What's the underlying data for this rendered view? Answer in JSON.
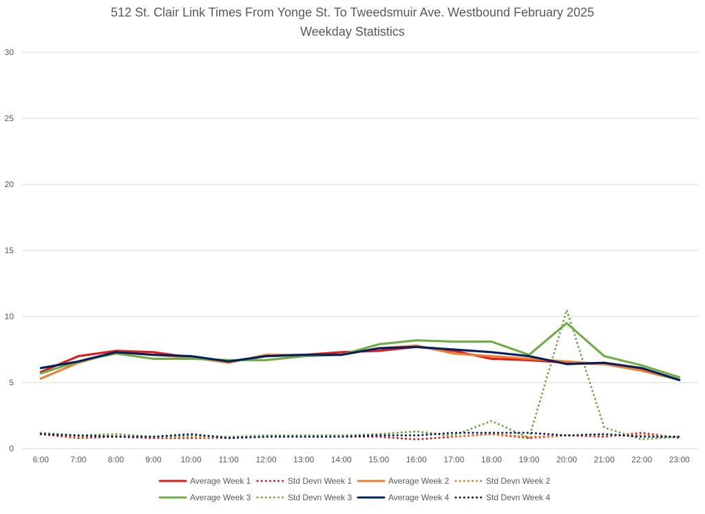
{
  "chart_data": {
    "type": "line",
    "title": "512 St. Clair Link Times From Yonge St. To Tweedsmuir Ave. Westbound February 2025",
    "subtitle": "Weekday Statistics",
    "xlabel": "",
    "ylabel": "",
    "categories": [
      "6:00",
      "7:00",
      "8:00",
      "9:00",
      "10:00",
      "11:00",
      "12:00",
      "13:00",
      "14:00",
      "15:00",
      "16:00",
      "17:00",
      "18:00",
      "19:00",
      "20:00",
      "21:00",
      "22:00",
      "23:00"
    ],
    "ylim": [
      0,
      30
    ],
    "yticks": [
      "0",
      "5",
      "10",
      "15",
      "20",
      "25",
      "30"
    ],
    "grid": true,
    "legend_position": "bottom",
    "series": [
      {
        "name": "Average Week 1",
        "style": "solid",
        "color": "#e01b1b",
        "values": [
          5.8,
          7.0,
          7.4,
          7.3,
          6.9,
          6.6,
          7.0,
          7.1,
          7.3,
          7.4,
          7.7,
          7.4,
          6.8,
          6.7,
          6.5,
          6.4,
          6.0,
          5.2
        ]
      },
      {
        "name": "Std Devn Week 1",
        "style": "dotted",
        "color": "#e01b1b",
        "values": [
          1.1,
          0.8,
          0.9,
          0.8,
          0.8,
          0.8,
          0.9,
          0.9,
          0.9,
          0.9,
          0.7,
          0.9,
          1.1,
          0.8,
          1.0,
          0.9,
          1.2,
          0.8
        ]
      },
      {
        "name": "Average Week 2",
        "style": "solid",
        "color": "#ed7d31",
        "values": [
          5.3,
          6.5,
          7.3,
          7.1,
          6.9,
          6.5,
          7.1,
          7.1,
          7.1,
          7.6,
          7.8,
          7.2,
          7.0,
          6.8,
          6.6,
          6.4,
          5.9,
          5.2
        ]
      },
      {
        "name": "Std Devn Week 2",
        "style": "dotted",
        "color": "#ed7d31",
        "values": [
          1.2,
          0.9,
          1.0,
          0.9,
          0.9,
          0.8,
          1.0,
          1.0,
          1.0,
          1.1,
          1.3,
          0.9,
          1.1,
          0.9,
          1.0,
          1.0,
          1.0,
          0.9
        ]
      },
      {
        "name": "Average Week 3",
        "style": "solid",
        "color": "#70ad47",
        "values": [
          5.7,
          6.6,
          7.2,
          6.8,
          6.8,
          6.7,
          6.7,
          7.0,
          7.1,
          7.9,
          8.2,
          8.1,
          8.1,
          7.1,
          9.5,
          7.0,
          6.3,
          5.4
        ]
      },
      {
        "name": "Std Devn Week 3",
        "style": "dotted",
        "color": "#70ad47",
        "values": [
          1.2,
          1.0,
          1.1,
          0.9,
          1.0,
          0.9,
          1.0,
          1.0,
          1.0,
          1.1,
          1.3,
          1.0,
          2.1,
          0.8,
          10.5,
          1.6,
          0.7,
          0.9
        ]
      },
      {
        "name": "Average Week 4",
        "style": "solid",
        "color": "#002060",
        "values": [
          6.1,
          6.6,
          7.3,
          7.1,
          7.0,
          6.6,
          7.0,
          7.1,
          7.1,
          7.6,
          7.7,
          7.5,
          7.3,
          7.0,
          6.4,
          6.5,
          6.1,
          5.2
        ]
      },
      {
        "name": "Std Devn Week 4",
        "style": "dotted",
        "color": "#002060",
        "values": [
          1.1,
          1.0,
          0.9,
          0.9,
          1.1,
          0.8,
          0.9,
          0.9,
          0.9,
          1.0,
          1.0,
          1.2,
          1.2,
          1.2,
          1.0,
          1.1,
          0.9,
          0.9
        ]
      }
    ]
  }
}
